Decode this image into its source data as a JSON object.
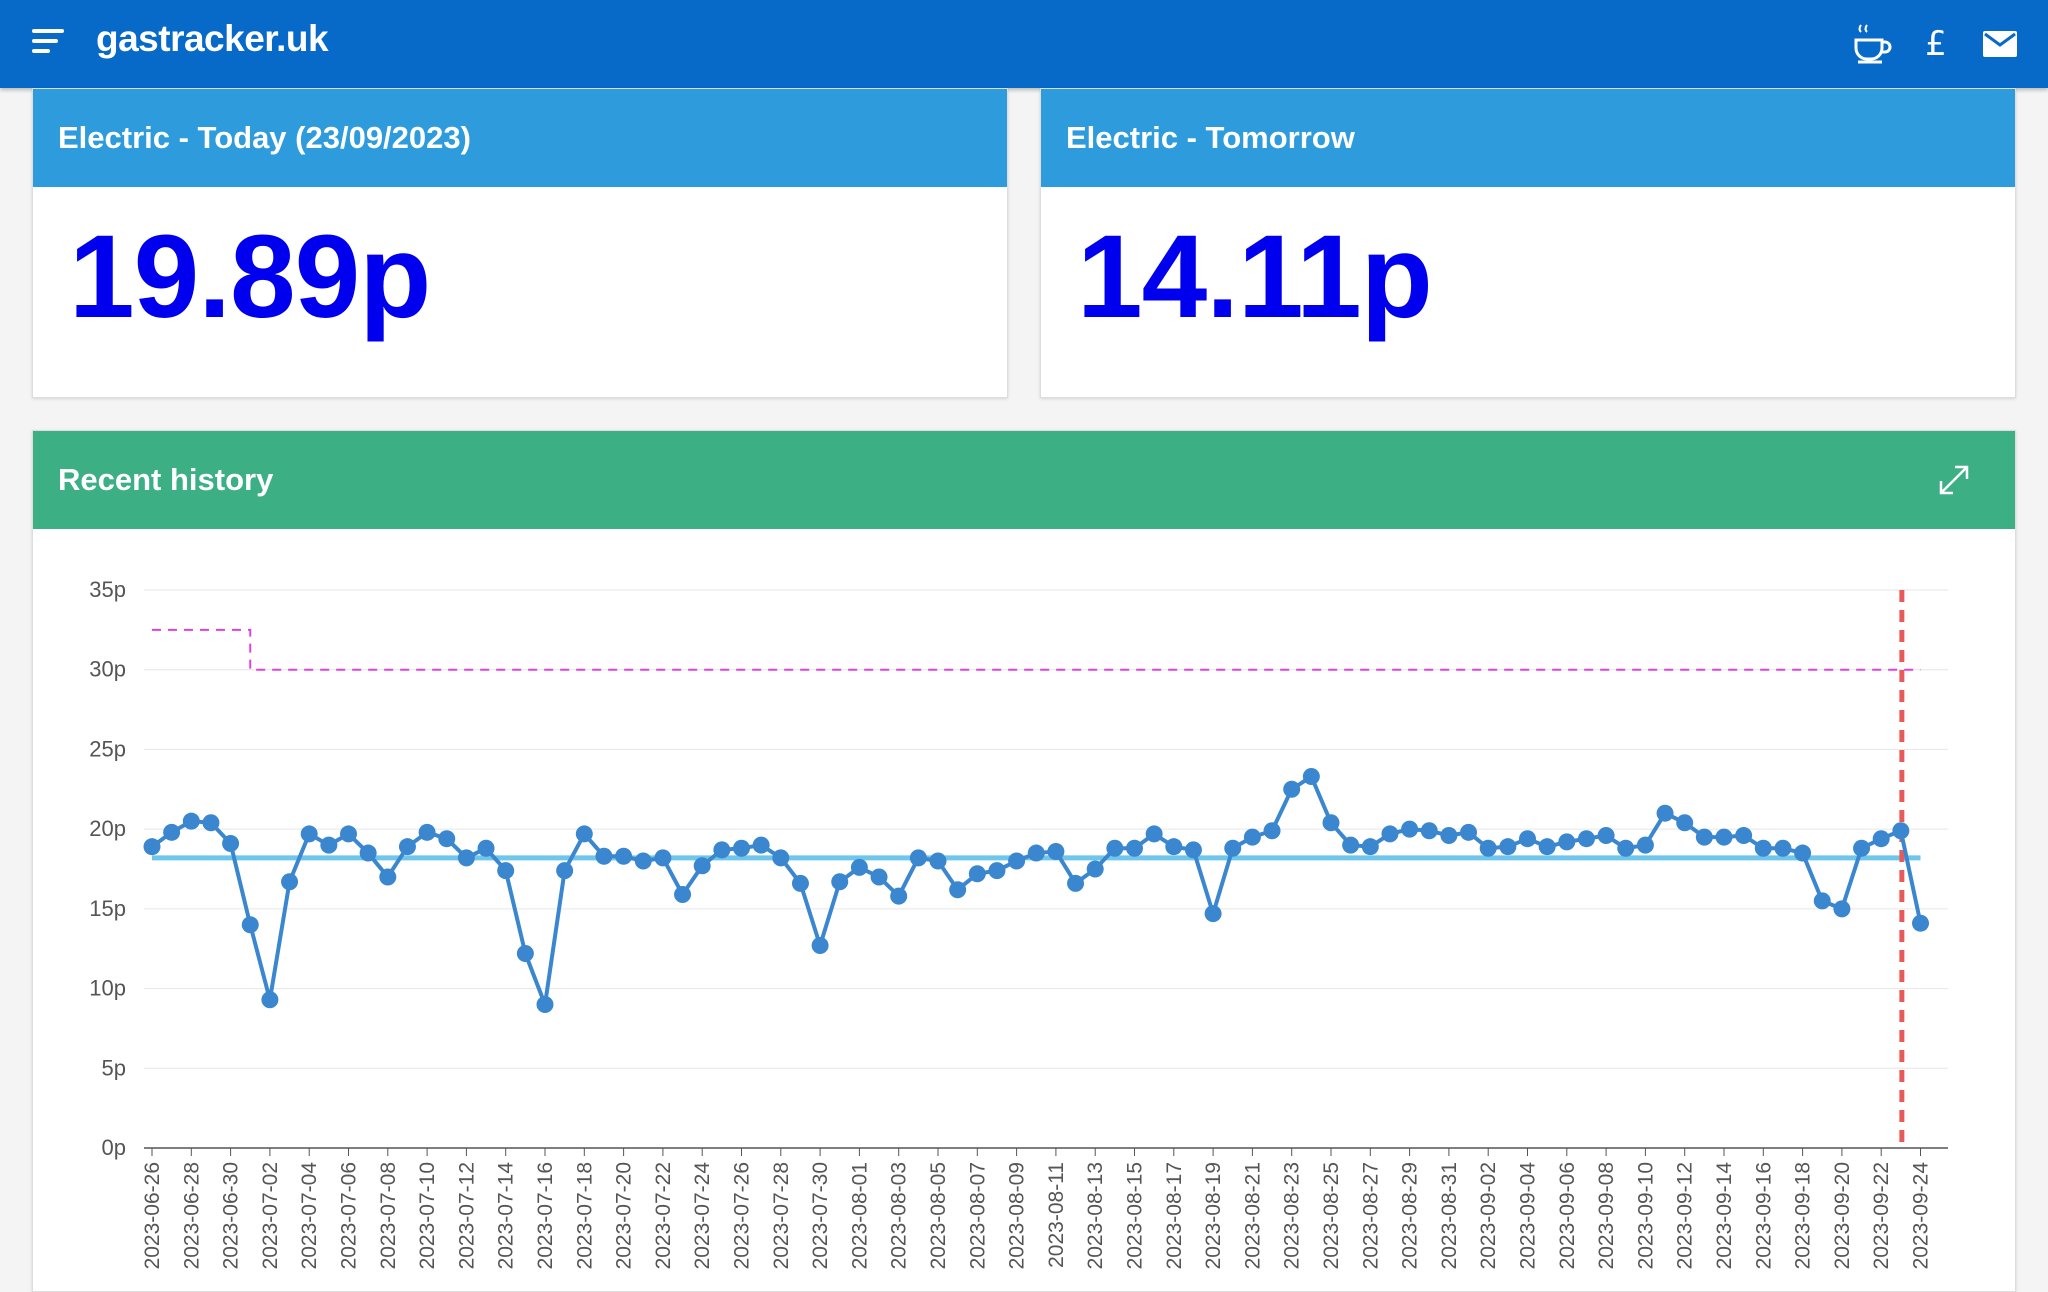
{
  "header": {
    "brand": "gastracker.uk",
    "icons": [
      "menu-icon",
      "coffee-icon",
      "pound-icon",
      "mail-icon"
    ],
    "pound_symbol": "£"
  },
  "cards": {
    "today": {
      "title": "Electric - Today (23/09/2023)",
      "price": "19.89p"
    },
    "tomorrow": {
      "title": "Electric - Tomorrow",
      "price": "14.11p"
    }
  },
  "history": {
    "title": "Recent history",
    "expand_icon": "expand-icon"
  },
  "colors": {
    "topbar": "#0769c8",
    "card_header_blue": "#2e9bdc",
    "card_header_green": "#3caf84",
    "price_text": "#0000ee",
    "series_line": "#3a87d0",
    "average_line": "#6ec6ec",
    "price_cap_line": "#e040e0",
    "today_marker": "#e85a5a"
  },
  "chart_data": {
    "type": "line",
    "start_date": "2023-06-26",
    "x_tick_labels": [
      "2023-06-26",
      "2023-06-28",
      "2023-06-30",
      "2023-07-02",
      "2023-07-04",
      "2023-07-06",
      "2023-07-08",
      "2023-07-10",
      "2023-07-12",
      "2023-07-14",
      "2023-07-16",
      "2023-07-18",
      "2023-07-20",
      "2023-07-22",
      "2023-07-24",
      "2023-07-26",
      "2023-07-28",
      "2023-07-30",
      "2023-08-01",
      "2023-08-03",
      "2023-08-05",
      "2023-08-07",
      "2023-08-09",
      "2023-08-11",
      "2023-08-13",
      "2023-08-15",
      "2023-08-17",
      "2023-08-19",
      "2023-08-21",
      "2023-08-23",
      "2023-08-25",
      "2023-08-27",
      "2023-08-29",
      "2023-08-31",
      "2023-09-02",
      "2023-09-04",
      "2023-09-06",
      "2023-09-08",
      "2023-09-10",
      "2023-09-12",
      "2023-09-14",
      "2023-09-16",
      "2023-09-18",
      "2023-09-20",
      "2023-09-22",
      "2023-09-24"
    ],
    "y_tick_labels": [
      "0p",
      "5p",
      "10p",
      "15p",
      "20p",
      "25p",
      "30p",
      "35p"
    ],
    "ylim": [
      0,
      35
    ],
    "grid": true,
    "series": [
      {
        "values": [
          18.9,
          19.8,
          20.5,
          20.4,
          19.1,
          14.0,
          9.3,
          16.7,
          19.7,
          19.0,
          19.7,
          18.5,
          17.0,
          18.9,
          19.8,
          19.4,
          18.2,
          18.8,
          17.4,
          12.2,
          9.0,
          17.4,
          19.7,
          18.3,
          18.3,
          18.0,
          18.2,
          15.9,
          17.7,
          18.7,
          18.8,
          19.0,
          18.2,
          16.6,
          12.7,
          16.7,
          17.6,
          17.0,
          15.8,
          18.2,
          18.0,
          16.2,
          17.2,
          17.4,
          18.0,
          18.5,
          18.6,
          16.6,
          17.5,
          18.8,
          18.8,
          19.7,
          18.9,
          18.7,
          14.7,
          18.8,
          19.5,
          19.9,
          22.5,
          23.3,
          20.4,
          19.0,
          18.9,
          19.7,
          20.0,
          19.9,
          19.6,
          19.8,
          18.8,
          18.9,
          19.4,
          18.9,
          19.2,
          19.4,
          19.6,
          18.8,
          19.0,
          21.0,
          20.4,
          19.5,
          19.5,
          19.6,
          18.8,
          18.8,
          18.5,
          15.5,
          15.0,
          18.8,
          19.4,
          19.9,
          14.1
        ]
      },
      {
        "values": [
          18.2
        ]
      },
      {
        "steps": [
          {
            "from": "2023-06-26",
            "to": "2023-07-01",
            "value": 32.5
          },
          {
            "from": "2023-07-01",
            "to": "2023-09-24",
            "value": 30.0
          }
        ]
      }
    ],
    "today_marker_date": "2023-09-23"
  }
}
